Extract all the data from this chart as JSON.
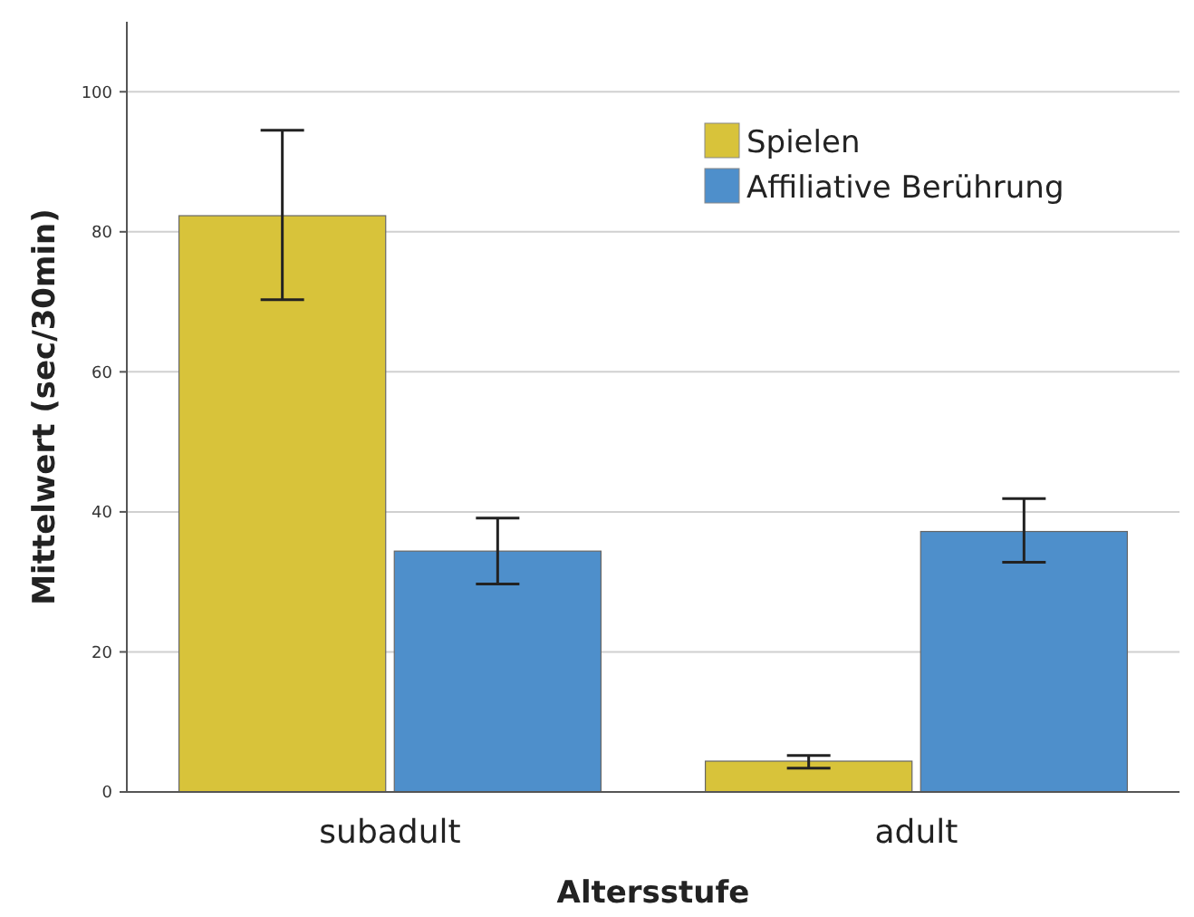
{
  "chart_data": {
    "type": "bar",
    "xlabel": "Altersstufe",
    "ylabel": "Mittelwert (sec/30min)",
    "categories": [
      "subadult",
      "adult"
    ],
    "series": [
      {
        "name": "Spielen",
        "color": "#d8c33a",
        "values": [
          82.3,
          4.4
        ],
        "errors": [
          [
            70.3,
            94.5
          ],
          [
            3.4,
            5.2
          ]
        ]
      },
      {
        "name": "Affiliative Berührung",
        "color": "#4e8fcb",
        "values": [
          34.4,
          37.2
        ],
        "errors": [
          [
            29.7,
            39.1
          ],
          [
            32.8,
            41.9
          ]
        ]
      }
    ],
    "ylim": [
      0,
      110
    ],
    "yticks": [
      0,
      20,
      40,
      60,
      80,
      100
    ],
    "grid": "y",
    "legend": "top right"
  }
}
